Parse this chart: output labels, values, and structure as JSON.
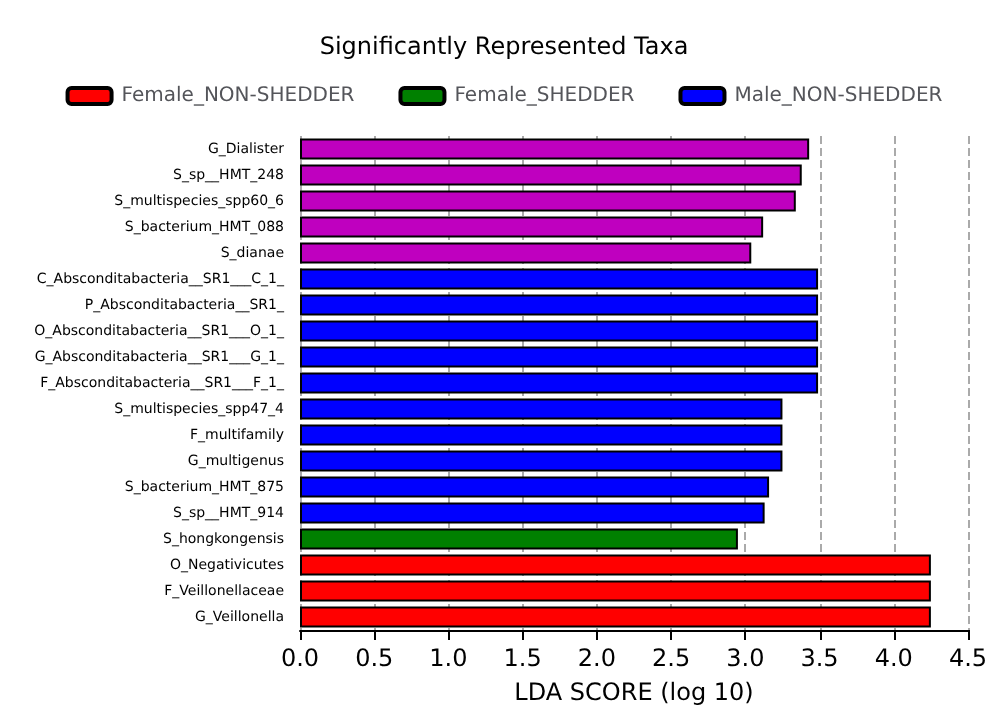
{
  "chart_data": {
    "type": "bar",
    "orientation": "horizontal",
    "title": "Significantly Represented Taxa",
    "xlabel": "LDA SCORE (log 10)",
    "categories": [
      "G_Dialister",
      "S_sp__HMT_248",
      "S_multispecies_spp60_6",
      "S_bacterium_HMT_088",
      "S_dianae",
      "C_Absconditabacteria__SR1___C_1_",
      "P_Absconditabacteria__SR1_",
      "O_Absconditabacteria__SR1___O_1_",
      "G_Absconditabacteria__SR1___G_1_",
      "F_Absconditabacteria__SR1___F_1_",
      "S_multispecies_spp47_4",
      "F_multifamily",
      "G_multigenus",
      "S_bacterium_HMT_875",
      "S_sp__HMT_914",
      "S_hongkongensis",
      "O_Negativicutes",
      "F_Veillonellaceae",
      "G_Veillonella"
    ],
    "series": [
      {
        "name": "Female_NON-SHEDDER",
        "color": "#ff0000",
        "values": [
          null,
          null,
          null,
          null,
          null,
          null,
          null,
          null,
          null,
          null,
          null,
          null,
          null,
          null,
          null,
          null,
          4.25,
          4.25,
          4.25
        ]
      },
      {
        "name": "Female_SHEDDER",
        "color": "#008000",
        "values": [
          null,
          null,
          null,
          null,
          null,
          null,
          null,
          null,
          null,
          null,
          null,
          null,
          null,
          null,
          null,
          2.95,
          null,
          null,
          null
        ]
      },
      {
        "name": "Male_NON-SHEDDER",
        "color": "#0000ff",
        "values": [
          null,
          null,
          null,
          null,
          null,
          3.49,
          3.49,
          3.49,
          3.49,
          3.49,
          3.25,
          3.25,
          3.25,
          3.16,
          3.13,
          null,
          null,
          null,
          null
        ]
      },
      {
        "color": "#bf00bf",
        "values": [
          3.43,
          3.38,
          3.34,
          3.12,
          3.04,
          null,
          null,
          null,
          null,
          null,
          null,
          null,
          null,
          null,
          null,
          null,
          null,
          null,
          null
        ]
      }
    ],
    "xlim": [
      0,
      4.5
    ],
    "xticks": [
      {
        "value": 0,
        "label": "0.0"
      },
      0.5,
      {
        "value": 1,
        "label": "1.0"
      },
      1.5,
      {
        "value": 2,
        "label": "2.0"
      },
      2.5,
      {
        "value": 3,
        "label": "3.0"
      },
      3.5,
      {
        "value": 4,
        "label": "4.0"
      },
      4.5
    ],
    "grid": "x",
    "legend": "top"
  }
}
